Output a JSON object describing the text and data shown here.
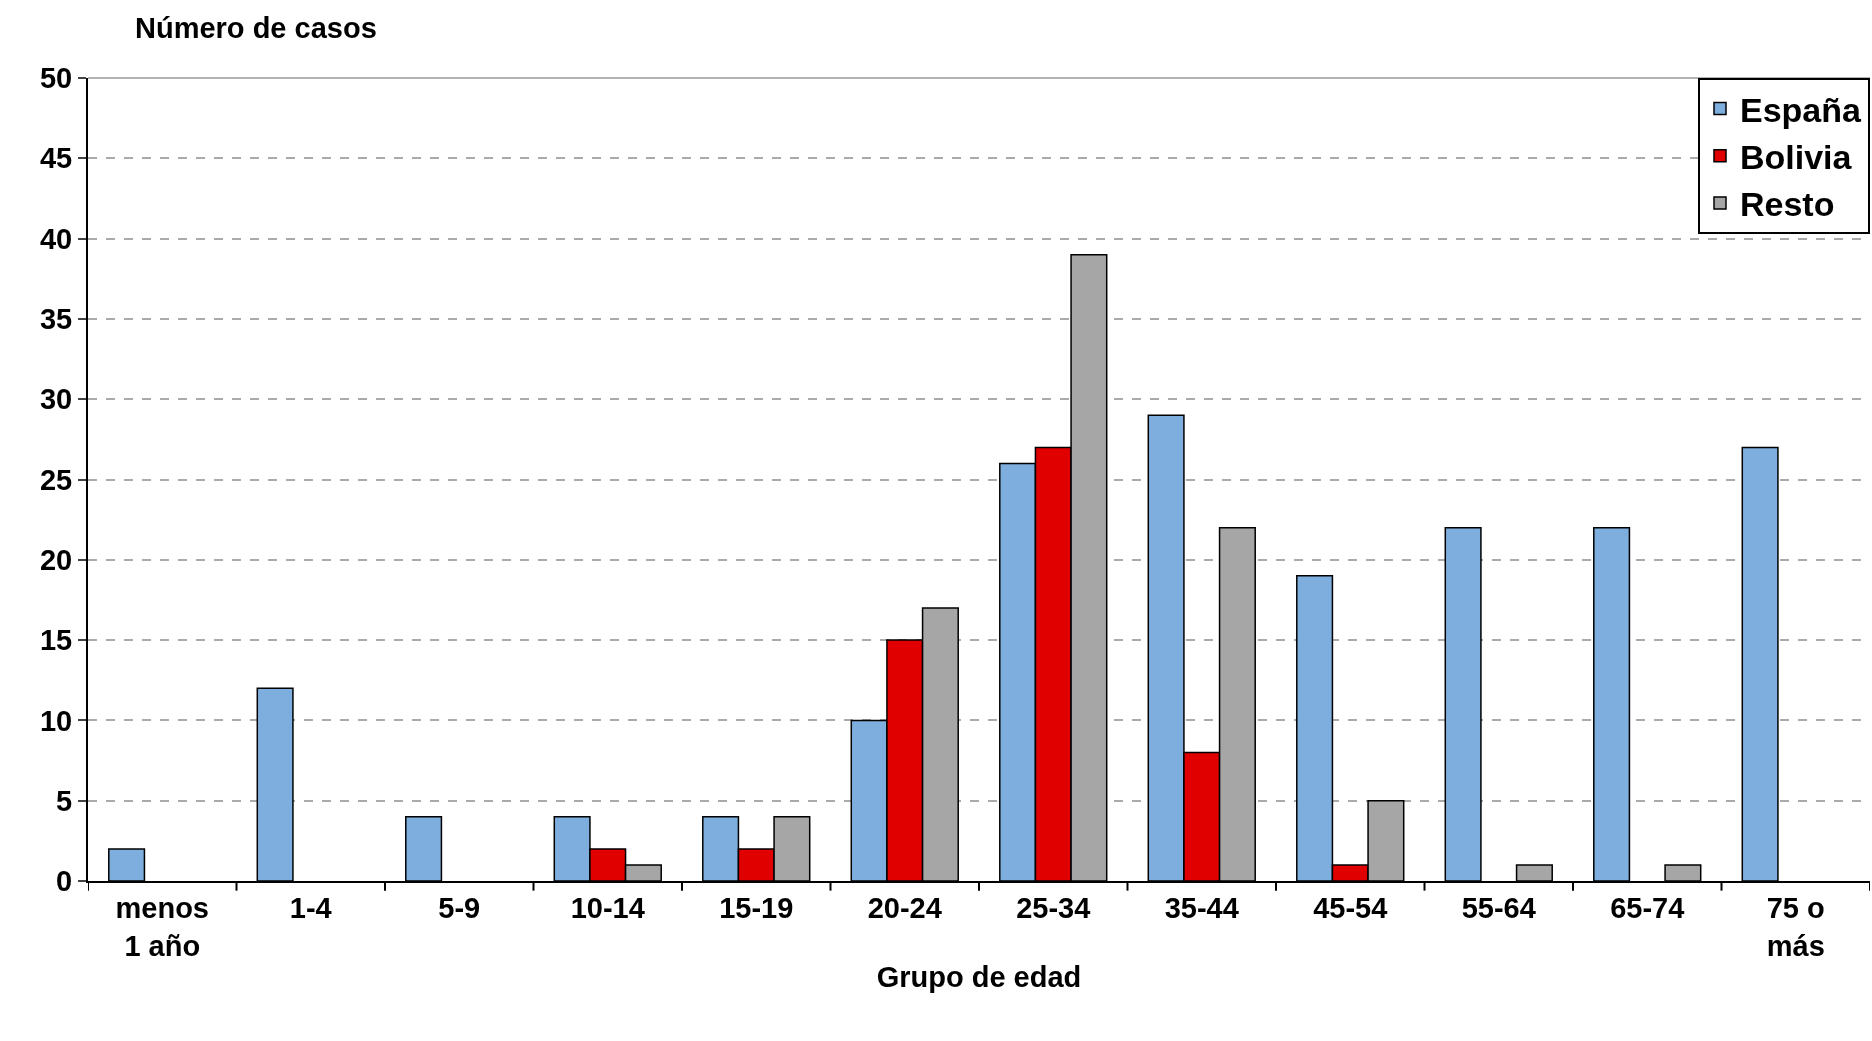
{
  "chart_data": {
    "type": "bar",
    "ylabel": "Número de casos",
    "xlabel": "Grupo de edad",
    "categories": [
      "menos 1 año",
      "1-4",
      "5-9",
      "10-14",
      "15-19",
      "20-24",
      "25-34",
      "35-44",
      "45-54",
      "55-64",
      "65-74",
      "75 o más"
    ],
    "series": [
      {
        "name": "España",
        "color": "#7eaedd",
        "values": [
          2,
          12,
          4,
          4,
          4,
          10,
          26,
          29,
          19,
          22,
          22,
          27
        ]
      },
      {
        "name": "Bolivia",
        "color": "#e00000",
        "values": [
          null,
          null,
          null,
          2,
          2,
          15,
          27,
          8,
          1,
          null,
          null,
          null
        ]
      },
      {
        "name": "Resto",
        "color": "#a6a6a6",
        "values": [
          null,
          null,
          null,
          1,
          4,
          17,
          39,
          22,
          5,
          1,
          1,
          null
        ]
      }
    ],
    "ylim": [
      0,
      50
    ],
    "yticks": [
      0,
      5,
      10,
      15,
      20,
      25,
      30,
      35,
      40,
      45,
      50
    ],
    "grid": "y",
    "legend": "top right"
  }
}
